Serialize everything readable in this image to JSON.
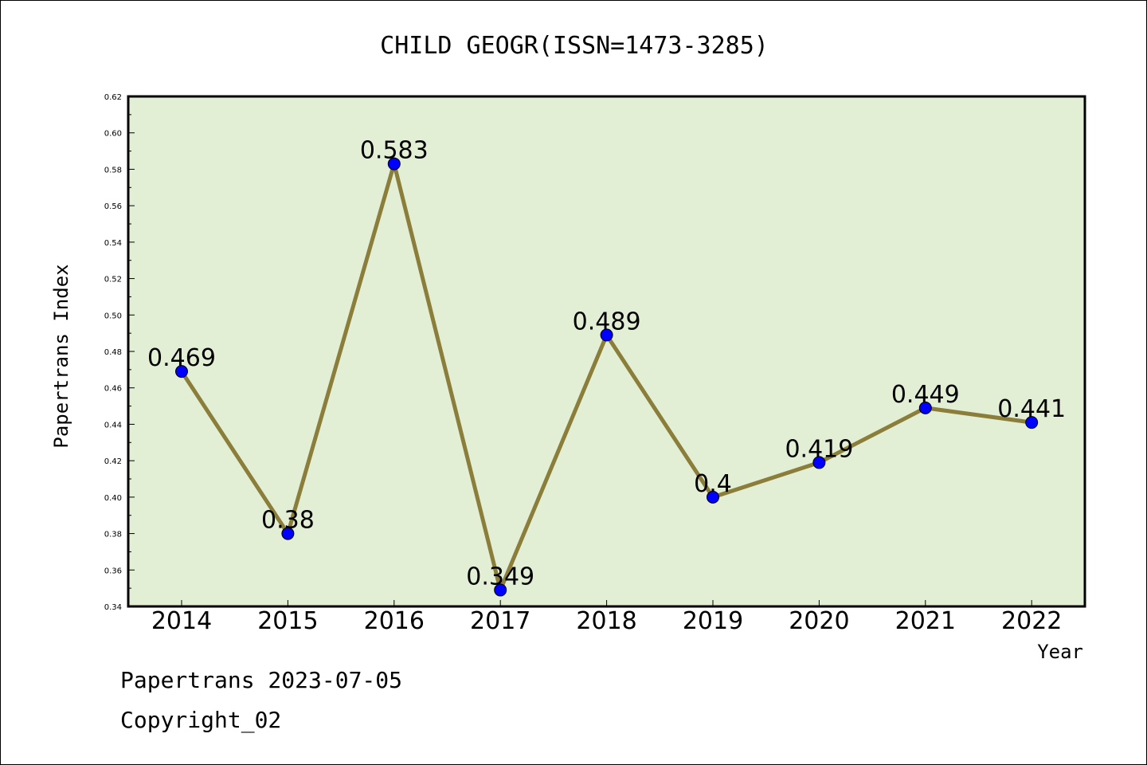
{
  "chart_data": {
    "type": "line",
    "title": "CHILD GEOGR(ISSN=1473-3285)",
    "xlabel": "Year",
    "ylabel": "Papertrans Index",
    "categories": [
      "2014",
      "2015",
      "2016",
      "2017",
      "2018",
      "2019",
      "2020",
      "2021",
      "2022"
    ],
    "series": [
      {
        "values": [
          0.469,
          0.38,
          0.583,
          0.349,
          0.489,
          0.4,
          0.419,
          0.449,
          0.441
        ],
        "data_labels": [
          "0.469",
          "0.38",
          "0.583",
          "0.349",
          "0.489",
          "0.4",
          "0.419",
          "0.449",
          "0.441"
        ],
        "line_color": "#8b7d3a",
        "marker_color": "#0000ff"
      }
    ],
    "ylim": [
      0.34,
      0.62
    ],
    "yticks": [
      "0.34",
      "0.36",
      "0.38",
      "0.40",
      "0.42",
      "0.44",
      "0.46",
      "0.48",
      "0.50",
      "0.52",
      "0.54",
      "0.56",
      "0.58",
      "0.60",
      "0.62"
    ],
    "grid": false,
    "plot_background": "#e2efd5"
  },
  "footer": {
    "date_text": "Papertrans 2023-07-05",
    "copyright_text": "Copyright_02"
  }
}
